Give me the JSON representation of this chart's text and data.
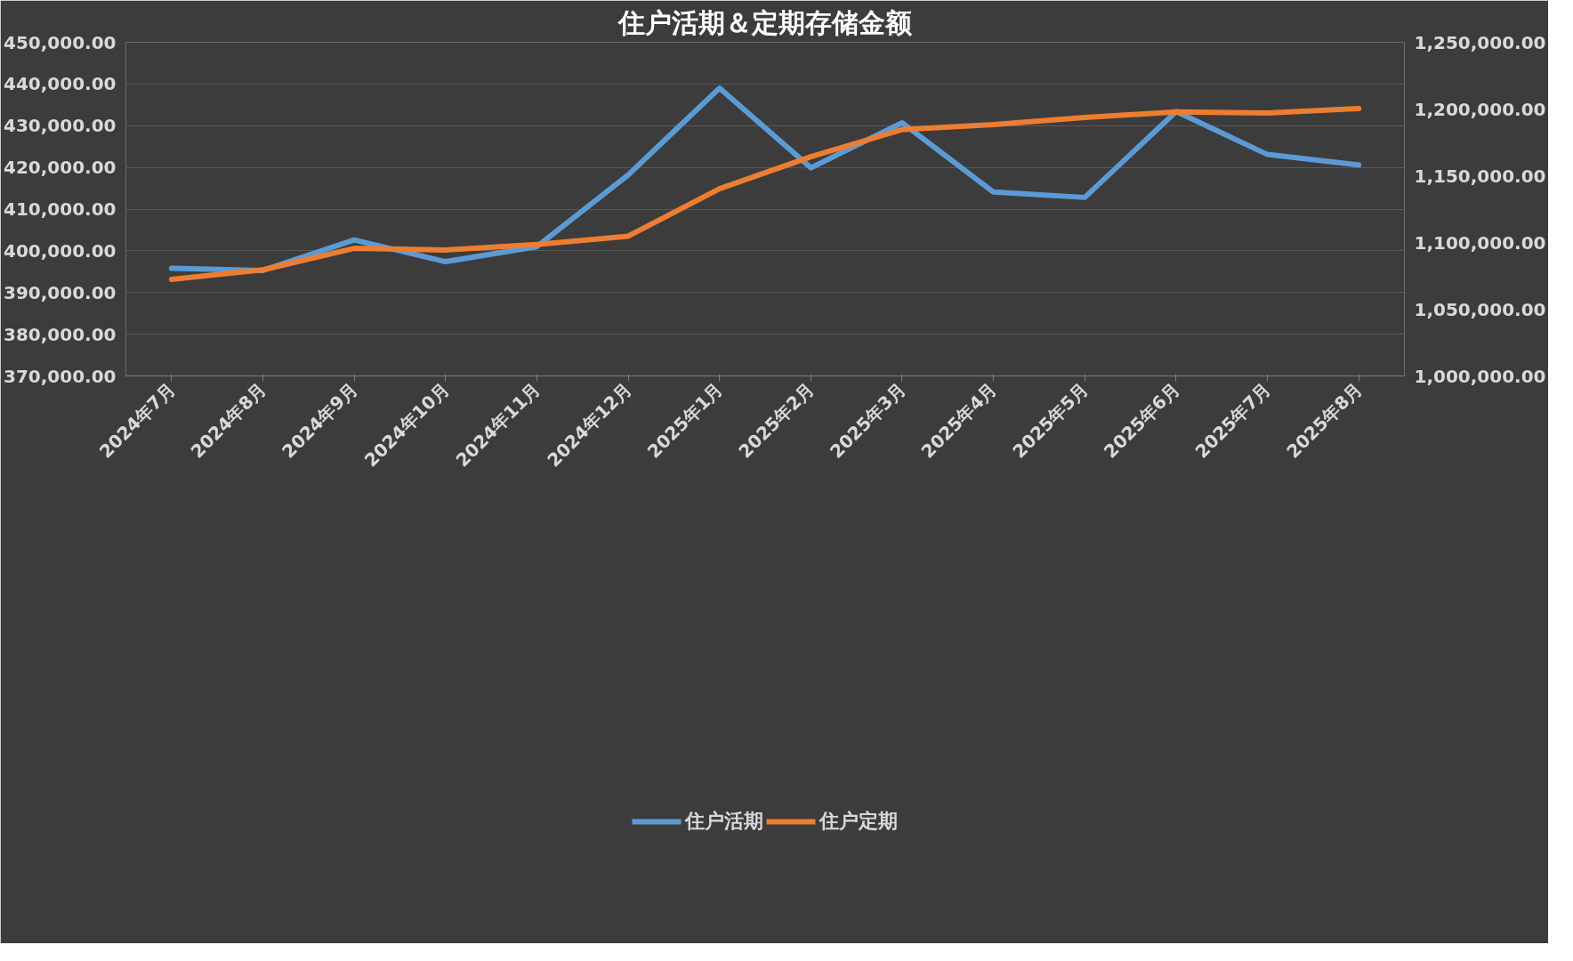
{
  "chart_data": {
    "type": "line",
    "title": "住户活期＆定期存储金额",
    "categories": [
      "2024年7月",
      "2024年8月",
      "2024年9月",
      "2024年10月",
      "2024年11月",
      "2024年12月",
      "2025年1月",
      "2025年2月",
      "2025年3月",
      "2025年4月",
      "2025年5月",
      "2025年6月",
      "2025年7月",
      "2025年8月"
    ],
    "series": [
      {
        "name": "住户活期",
        "color": "#5b9bd5",
        "values": [
          395800,
          395300,
          402600,
          397400,
          401000,
          418200,
          439000,
          419900,
          430700,
          414100,
          412800,
          433400,
          423100,
          420600
        ]
      },
      {
        "name": "住户定期",
        "color": "#ed7d31",
        "axis": "y2",
        "values": [
          1072400,
          1079500,
          1095600,
          1094400,
          1098500,
          1104700,
          1140300,
          1164300,
          1184600,
          1188300,
          1193700,
          1197800,
          1197000,
          1200300
        ]
      }
    ],
    "ylim": [
      370000,
      450000
    ],
    "yticks": [
      {
        "value": 370000,
        "label": "370,000.00"
      },
      {
        "value": 380000,
        "label": "380,000.00"
      },
      {
        "value": 390000,
        "label": "390,000.00"
      },
      {
        "value": 400000,
        "label": "400,000.00"
      },
      {
        "value": 410000,
        "label": "410,000.00"
      },
      {
        "value": 420000,
        "label": "420,000.00"
      },
      {
        "value": 430000,
        "label": "430,000.00"
      },
      {
        "value": 440000,
        "label": "440,000.00"
      },
      {
        "value": 450000,
        "label": "450,000.00"
      }
    ],
    "y2lim": [
      1000000,
      1250000
    ],
    "y2ticks": [
      {
        "value": 1000000,
        "label": "1,000,000.00"
      },
      {
        "value": 1050000,
        "label": "1,050,000.00"
      },
      {
        "value": 1100000,
        "label": "1,100,000.00"
      },
      {
        "value": 1150000,
        "label": "1,150,000.00"
      },
      {
        "value": 1200000,
        "label": "1,200,000.00"
      },
      {
        "value": 1250000,
        "label": "1,250,000.00"
      }
    ],
    "grid": "y",
    "legend": "bottom",
    "line_style": "solid",
    "marker": "none"
  }
}
